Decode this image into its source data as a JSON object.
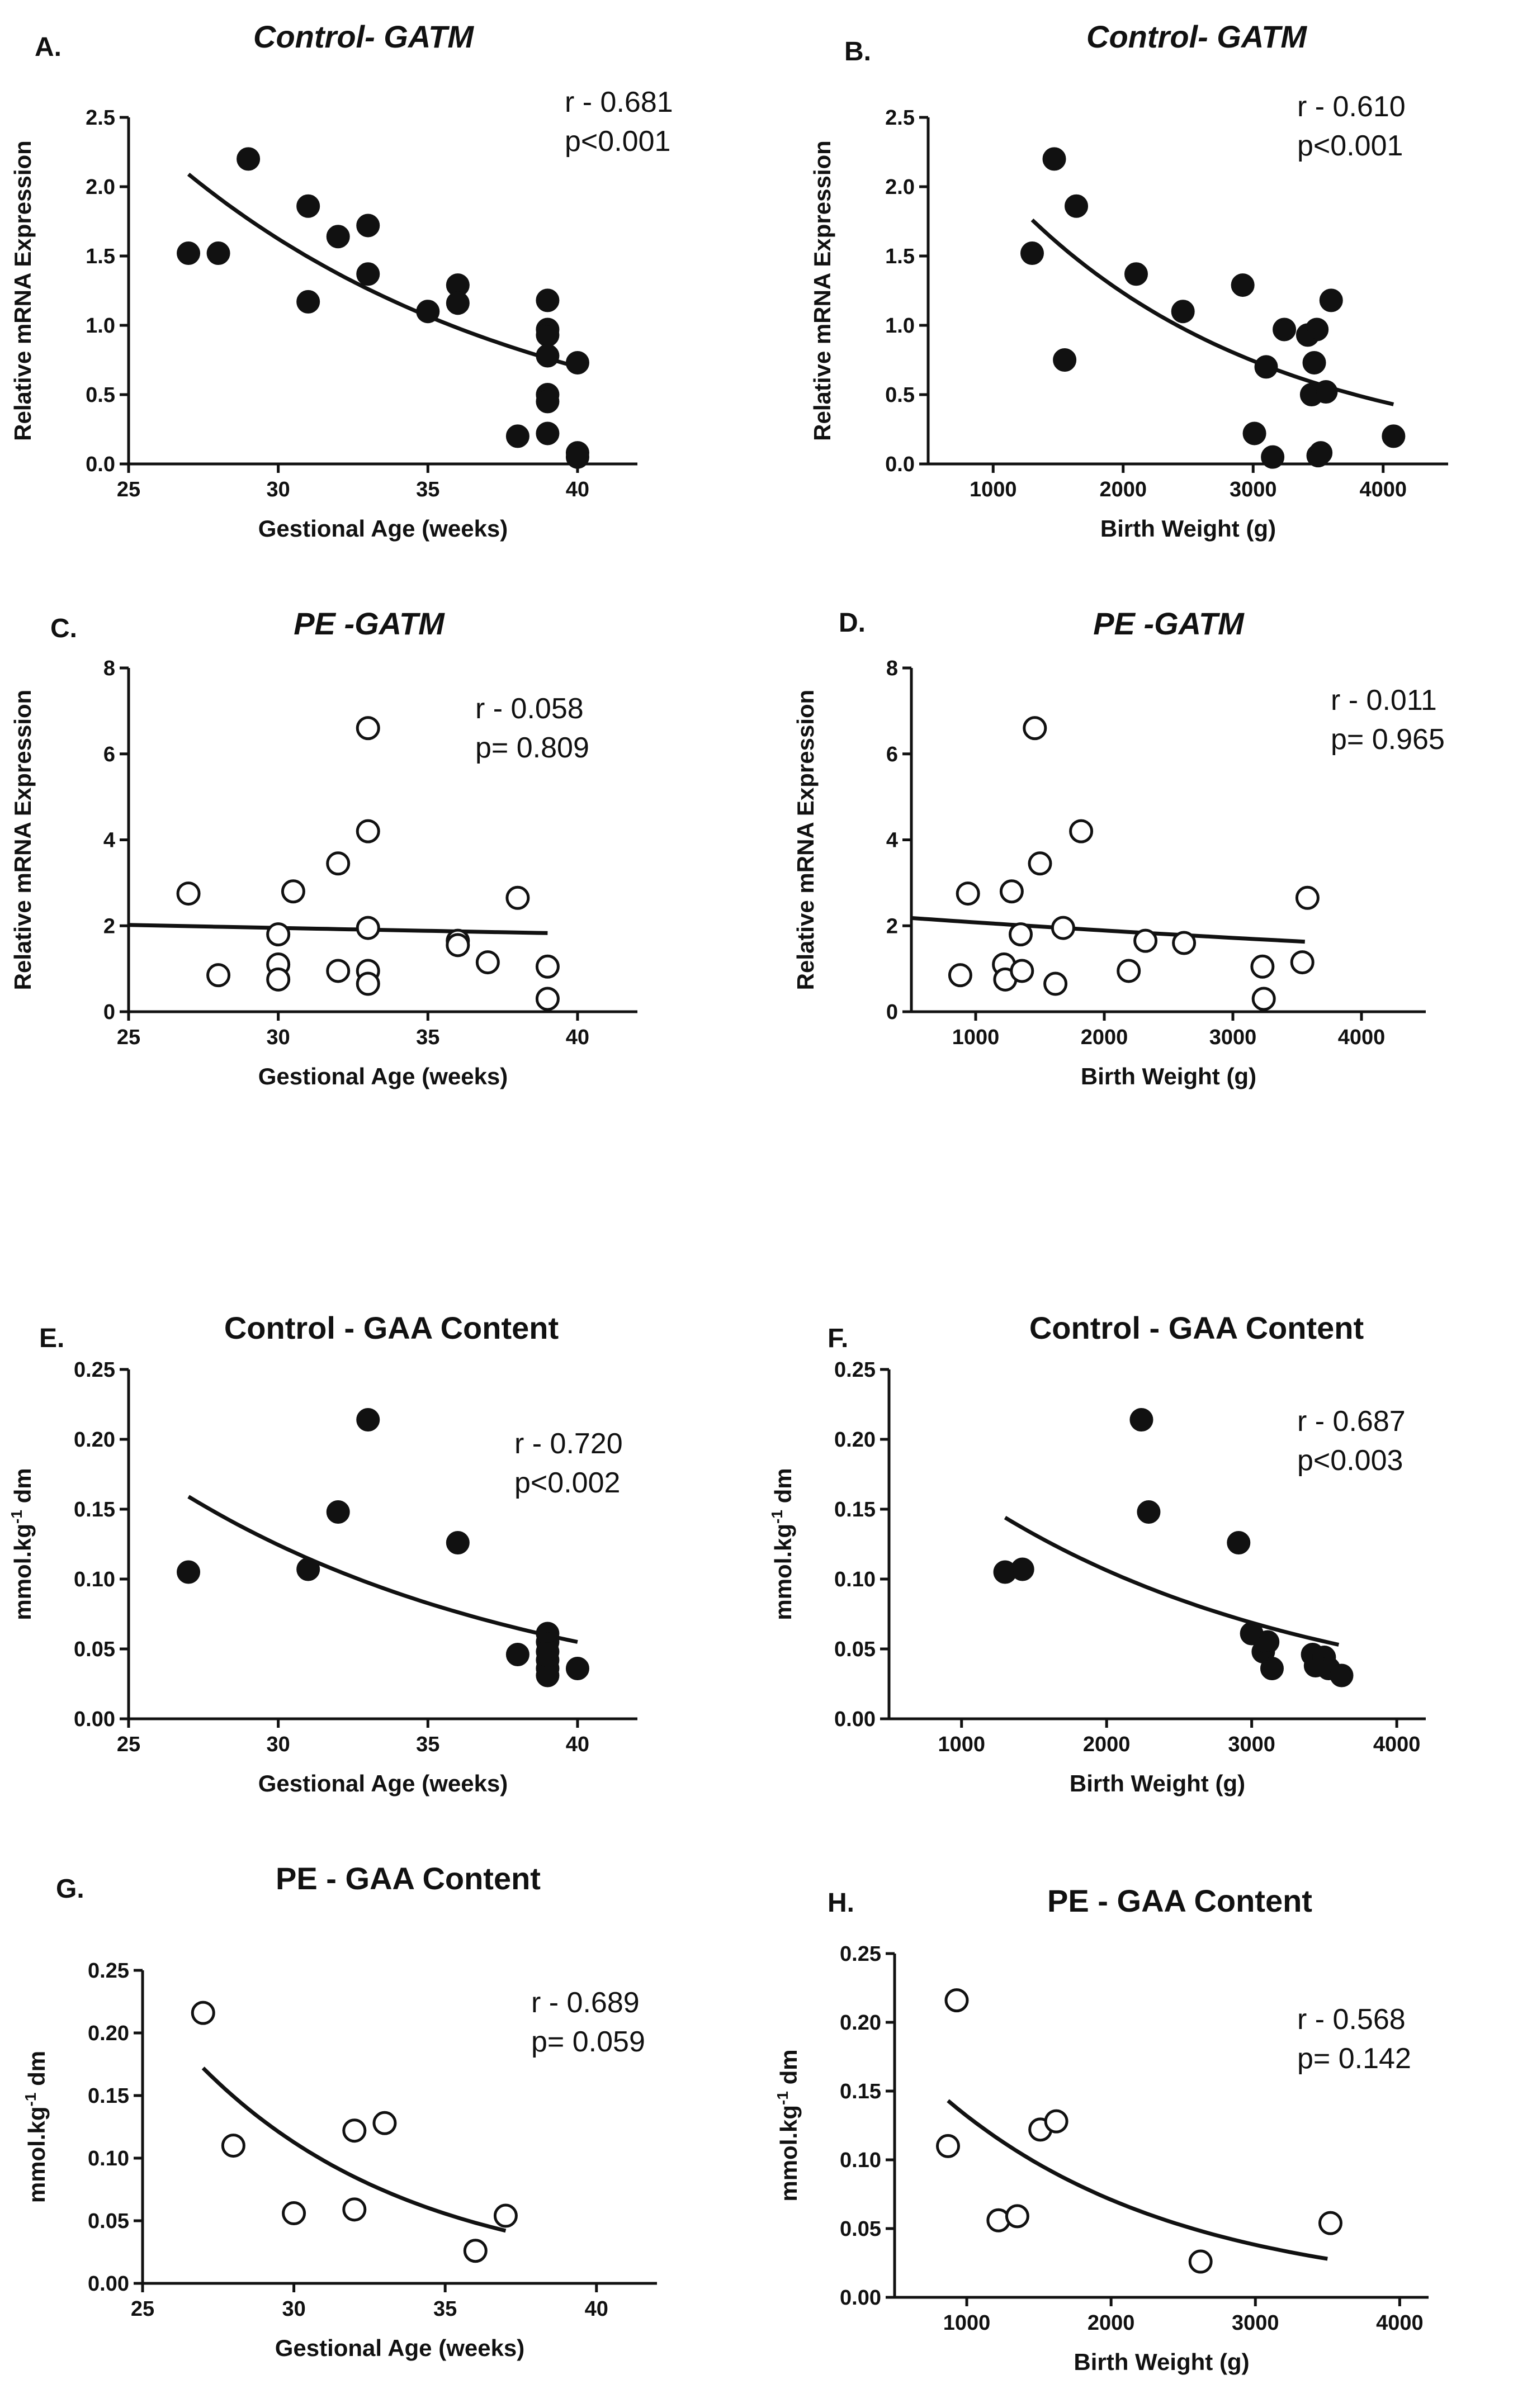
{
  "chart_data": [
    {
      "id": "A",
      "panel_label": "A.",
      "title": "Control- GATM",
      "title_italic": true,
      "type": "scatter",
      "marker": "filled",
      "xlabel": "Gestional Age (weeks)",
      "ylabel": "Relative mRNA Expression",
      "xlim": [
        25,
        42
      ],
      "ylim": [
        0,
        2.5
      ],
      "xticks": [
        25,
        30,
        35,
        40
      ],
      "yticks": [
        0.0,
        0.5,
        1.0,
        1.5,
        2.0,
        2.5
      ],
      "ytick_decimals": 1,
      "stat_r": "r - 0.681",
      "stat_p": "p<0.001",
      "points": [
        [
          27,
          1.52
        ],
        [
          28,
          1.52
        ],
        [
          29,
          2.2
        ],
        [
          31,
          1.86
        ],
        [
          31,
          1.17
        ],
        [
          32,
          1.64
        ],
        [
          33,
          1.72
        ],
        [
          33,
          1.37
        ],
        [
          35,
          1.1
        ],
        [
          36,
          1.29
        ],
        [
          36,
          1.16
        ],
        [
          38,
          0.2
        ],
        [
          39,
          1.18
        ],
        [
          39,
          0.97
        ],
        [
          39,
          0.93
        ],
        [
          39,
          0.78
        ],
        [
          39,
          0.5
        ],
        [
          39,
          0.45
        ],
        [
          39,
          0.22
        ],
        [
          40,
          0.73
        ],
        [
          40,
          0.08
        ],
        [
          40,
          0.05
        ]
      ],
      "fit": {
        "x_start": 27,
        "x_end": 40,
        "y_start": 2.09,
        "y_end": 0.7
      }
    },
    {
      "id": "B",
      "panel_label": "B.",
      "title": "Control- GATM",
      "title_italic": true,
      "type": "scatter",
      "marker": "filled",
      "xlabel": "Birth Weight (g)",
      "ylabel": "Relative mRNA Expression",
      "xlim": [
        500,
        4500
      ],
      "ylim": [
        0,
        2.5
      ],
      "xticks": [
        1000,
        2000,
        3000,
        4000
      ],
      "yticks": [
        0.0,
        0.5,
        1.0,
        1.5,
        2.0,
        2.5
      ],
      "ytick_decimals": 1,
      "stat_r": "r - 0.610",
      "stat_p": "p<0.001",
      "points": [
        [
          1300,
          1.52
        ],
        [
          1470,
          2.2
        ],
        [
          1550,
          0.75
        ],
        [
          1640,
          1.86
        ],
        [
          2100,
          1.37
        ],
        [
          2460,
          1.1
        ],
        [
          2920,
          1.29
        ],
        [
          3010,
          0.22
        ],
        [
          3100,
          0.7
        ],
        [
          3150,
          0.05
        ],
        [
          3240,
          0.97
        ],
        [
          3420,
          0.93
        ],
        [
          3450,
          0.5
        ],
        [
          3470,
          0.73
        ],
        [
          3490,
          0.97
        ],
        [
          3500,
          0.06
        ],
        [
          3520,
          0.08
        ],
        [
          3560,
          0.52
        ],
        [
          3600,
          1.18
        ],
        [
          4080,
          0.2
        ]
      ],
      "fit": {
        "x_start": 1300,
        "x_end": 4080,
        "y_start": 1.76,
        "y_end": 0.43
      }
    },
    {
      "id": "C",
      "panel_label": "C.",
      "title": "PE -GATM",
      "title_italic": true,
      "type": "scatter",
      "marker": "open",
      "xlabel": "Gestional Age (weeks)",
      "ylabel": "Relative mRNA Expression",
      "xlim": [
        25,
        42
      ],
      "ylim": [
        0,
        8
      ],
      "xticks": [
        25,
        30,
        35,
        40
      ],
      "yticks": [
        0,
        2,
        4,
        6,
        8
      ],
      "ytick_decimals": 0,
      "stat_r": "r - 0.058",
      "stat_p": "p= 0.809",
      "points": [
        [
          27,
          2.75
        ],
        [
          28,
          0.85
        ],
        [
          30,
          1.8
        ],
        [
          30,
          1.1
        ],
        [
          30,
          0.75
        ],
        [
          30.5,
          2.8
        ],
        [
          32,
          3.45
        ],
        [
          32,
          0.95
        ],
        [
          33,
          6.6
        ],
        [
          33,
          4.2
        ],
        [
          33,
          1.95
        ],
        [
          33,
          0.95
        ],
        [
          33,
          0.65
        ],
        [
          36,
          1.65
        ],
        [
          36,
          1.55
        ],
        [
          37,
          1.15
        ],
        [
          38,
          2.65
        ],
        [
          39,
          1.05
        ],
        [
          39,
          0.3
        ]
      ],
      "fit": {
        "x_start": 25,
        "x_end": 39,
        "y_start": 2.02,
        "y_end": 1.83
      }
    },
    {
      "id": "D",
      "panel_label": "D.",
      "title": "PE -GATM",
      "title_italic": true,
      "type": "scatter",
      "marker": "open",
      "xlabel": "Birth Weight (g)",
      "ylabel": "Relative mRNA Expression",
      "xlim": [
        500,
        4500
      ],
      "ylim": [
        0,
        8
      ],
      "xticks": [
        1000,
        2000,
        3000,
        4000
      ],
      "yticks": [
        0,
        2,
        4,
        6,
        8
      ],
      "ytick_decimals": 0,
      "stat_r": "r - 0.011",
      "stat_p": "p= 0.965",
      "points": [
        [
          880,
          0.85
        ],
        [
          940,
          2.75
        ],
        [
          1220,
          1.1
        ],
        [
          1230,
          0.75
        ],
        [
          1280,
          2.8
        ],
        [
          1350,
          1.8
        ],
        [
          1360,
          0.95
        ],
        [
          1460,
          6.6
        ],
        [
          1500,
          3.45
        ],
        [
          1620,
          0.65
        ],
        [
          1680,
          1.95
        ],
        [
          1820,
          4.2
        ],
        [
          2190,
          0.95
        ],
        [
          2320,
          1.65
        ],
        [
          2620,
          1.6
        ],
        [
          3230,
          1.05
        ],
        [
          3240,
          0.3
        ],
        [
          3540,
          1.15
        ],
        [
          3580,
          2.65
        ]
      ],
      "fit": {
        "x_start": 500,
        "x_end": 3560,
        "y_start": 2.18,
        "y_end": 1.63
      }
    },
    {
      "id": "E",
      "panel_label": "E.",
      "title": "Control - GAA Content",
      "title_italic": false,
      "type": "scatter",
      "marker": "filled",
      "xlabel": "Gestional Age (weeks)",
      "ylabel": "mmol.kg-1 dm",
      "xlim": [
        25,
        42
      ],
      "ylim": [
        0,
        0.25
      ],
      "xticks": [
        25,
        30,
        35,
        40
      ],
      "yticks": [
        0.0,
        0.05,
        0.1,
        0.15,
        0.2,
        0.25
      ],
      "ytick_decimals": 2,
      "stat_r": "r - 0.720",
      "stat_p": "p<0.002",
      "points": [
        [
          27,
          0.105
        ],
        [
          31,
          0.107
        ],
        [
          32,
          0.148
        ],
        [
          33,
          0.214
        ],
        [
          36,
          0.126
        ],
        [
          38,
          0.046
        ],
        [
          39,
          0.061
        ],
        [
          39,
          0.055
        ],
        [
          39,
          0.048
        ],
        [
          39,
          0.042
        ],
        [
          39,
          0.036
        ],
        [
          39,
          0.031
        ],
        [
          40,
          0.036
        ]
      ],
      "fit": {
        "x_start": 27,
        "x_end": 40,
        "y_start": 0.159,
        "y_end": 0.055
      }
    },
    {
      "id": "F",
      "panel_label": "F.",
      "title": "Control - GAA Content",
      "title_italic": false,
      "type": "scatter",
      "marker": "filled",
      "xlabel": "Birth Weight (g)",
      "ylabel": "mmol.kg-1 dm",
      "xlim": [
        500,
        4200
      ],
      "ylim": [
        0,
        0.25
      ],
      "xticks": [
        1000,
        2000,
        3000,
        4000
      ],
      "yticks": [
        0.0,
        0.05,
        0.1,
        0.15,
        0.2,
        0.25
      ],
      "ytick_decimals": 2,
      "stat_r": "r - 0.687",
      "stat_p": "p<0.003",
      "points": [
        [
          1300,
          0.105
        ],
        [
          1420,
          0.107
        ],
        [
          2240,
          0.214
        ],
        [
          2290,
          0.148
        ],
        [
          2910,
          0.126
        ],
        [
          3000,
          0.061
        ],
        [
          3080,
          0.048
        ],
        [
          3110,
          0.055
        ],
        [
          3140,
          0.036
        ],
        [
          3420,
          0.046
        ],
        [
          3440,
          0.038
        ],
        [
          3500,
          0.044
        ],
        [
          3530,
          0.036
        ],
        [
          3620,
          0.031
        ]
      ],
      "fit": {
        "x_start": 1300,
        "x_end": 3600,
        "y_start": 0.144,
        "y_end": 0.053
      }
    },
    {
      "id": "G",
      "panel_label": "G.",
      "title": "PE - GAA Content",
      "title_italic": false,
      "type": "scatter",
      "marker": "open",
      "xlabel": "Gestional Age (weeks)",
      "ylabel": "mmol.kg-1 dm",
      "xlim": [
        25,
        42
      ],
      "ylim": [
        0,
        0.25
      ],
      "xticks": [
        25,
        30,
        35,
        40
      ],
      "yticks": [
        0.0,
        0.05,
        0.1,
        0.15,
        0.2,
        0.25
      ],
      "ytick_decimals": 2,
      "stat_r": "r - 0.689",
      "stat_p": "p= 0.059",
      "points": [
        [
          27,
          0.216
        ],
        [
          28,
          0.11
        ],
        [
          30,
          0.056
        ],
        [
          32,
          0.122
        ],
        [
          32,
          0.059
        ],
        [
          33,
          0.128
        ],
        [
          36,
          0.026
        ],
        [
          37,
          0.054
        ]
      ],
      "fit": {
        "x_start": 27,
        "x_end": 37,
        "y_start": 0.172,
        "y_end": 0.042
      }
    },
    {
      "id": "H",
      "panel_label": "H.",
      "title": "PE - GAA Content",
      "title_italic": false,
      "type": "scatter",
      "marker": "open",
      "xlabel": "Birth Weight (g)",
      "ylabel": "mmol.kg-1 dm",
      "xlim": [
        500,
        4200
      ],
      "ylim": [
        0,
        0.25
      ],
      "xticks": [
        1000,
        2000,
        3000,
        4000
      ],
      "yticks": [
        0.0,
        0.05,
        0.1,
        0.15,
        0.2,
        0.25
      ],
      "ytick_decimals": 2,
      "stat_r": "r - 0.568",
      "stat_p": "p= 0.142",
      "points": [
        [
          870,
          0.11
        ],
        [
          930,
          0.216
        ],
        [
          1220,
          0.056
        ],
        [
          1350,
          0.059
        ],
        [
          1510,
          0.122
        ],
        [
          1620,
          0.128
        ],
        [
          2620,
          0.026
        ],
        [
          3520,
          0.054
        ]
      ],
      "fit": {
        "x_start": 870,
        "x_end": 3500,
        "y_start": 0.143,
        "y_end": 0.028
      }
    }
  ]
}
